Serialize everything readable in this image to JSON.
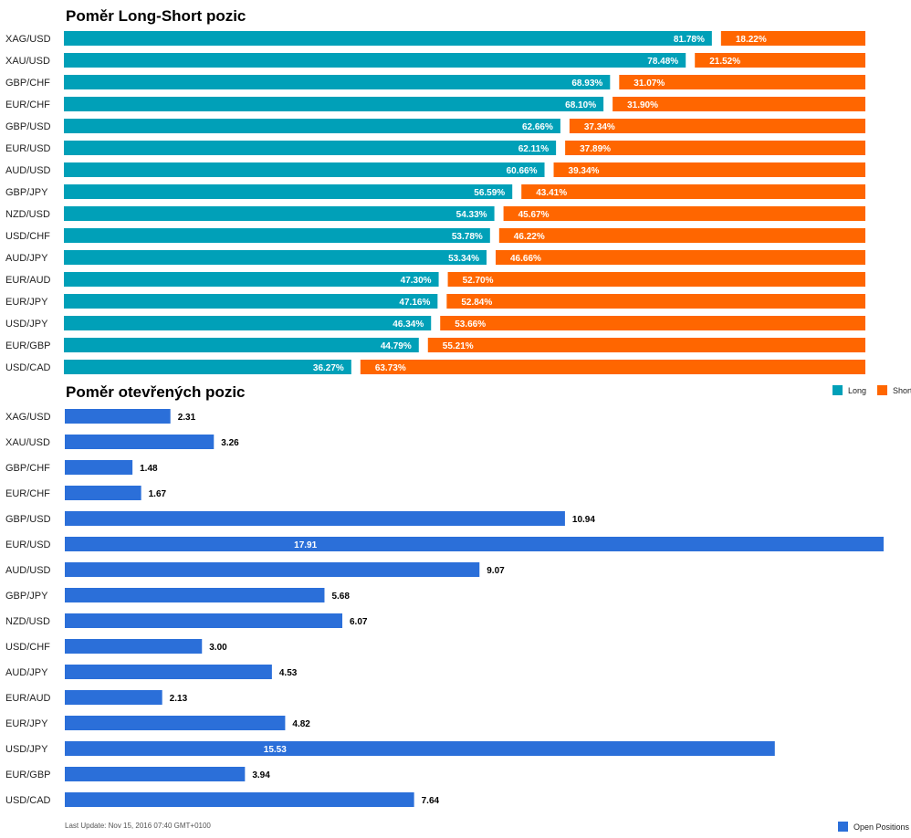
{
  "colors": {
    "long": "#00a0b8",
    "short": "#ff6600",
    "open": "#2b6fd9"
  },
  "chart_data": [
    {
      "type": "bar",
      "orientation": "horizontal",
      "stacked": true,
      "title": "Poměr Long-Short pozic",
      "categories": [
        "XAG/USD",
        "XAU/USD",
        "GBP/CHF",
        "EUR/CHF",
        "GBP/USD",
        "EUR/USD",
        "AUD/USD",
        "GBP/JPY",
        "NZD/USD",
        "USD/CHF",
        "AUD/JPY",
        "EUR/AUD",
        "EUR/JPY",
        "USD/JPY",
        "EUR/GBP",
        "USD/CAD"
      ],
      "series": [
        {
          "name": "Long",
          "values": [
            81.78,
            78.48,
            68.93,
            68.1,
            62.66,
            62.11,
            60.66,
            56.59,
            54.33,
            53.78,
            53.34,
            47.3,
            47.16,
            46.34,
            44.79,
            36.27
          ],
          "labels": [
            "81.78%",
            "78.48%",
            "68.93%",
            "68.10%",
            "62.66%",
            "62.11%",
            "60.66%",
            "56.59%",
            "54.33%",
            "53.78%",
            "53.34%",
            "47.30%",
            "47.16%",
            "46.34%",
            "44.79%",
            "36.27%"
          ]
        },
        {
          "name": "Short",
          "values": [
            18.22,
            21.52,
            31.07,
            31.9,
            37.34,
            37.89,
            39.34,
            43.41,
            45.67,
            46.22,
            46.66,
            52.7,
            52.84,
            53.66,
            55.21,
            63.73
          ],
          "labels": [
            "18.22%",
            "21.52%",
            "31.07%",
            "31.90%",
            "37.34%",
            "37.89%",
            "39.34%",
            "43.41%",
            "45.67%",
            "46.22%",
            "46.66%",
            "52.70%",
            "52.84%",
            "53.66%",
            "55.21%",
            "63.73%"
          ]
        }
      ],
      "legend": "right",
      "grid": false
    },
    {
      "type": "bar",
      "orientation": "horizontal",
      "title": "Poměr otevřených pozic",
      "categories": [
        "XAG/USD",
        "XAU/USD",
        "GBP/CHF",
        "EUR/CHF",
        "GBP/USD",
        "EUR/USD",
        "AUD/USD",
        "GBP/JPY",
        "NZD/USD",
        "USD/CHF",
        "AUD/JPY",
        "EUR/AUD",
        "EUR/JPY",
        "USD/JPY",
        "EUR/GBP",
        "USD/CAD"
      ],
      "series": [
        {
          "name": "Open Positions",
          "values": [
            2.31,
            3.26,
            1.48,
            1.67,
            10.94,
            17.91,
            9.07,
            5.68,
            6.07,
            3.0,
            4.53,
            2.13,
            4.82,
            15.53,
            3.94,
            7.64
          ],
          "labels": [
            "2.31",
            "3.26",
            "1.48",
            "1.67",
            "10.94",
            "17.91",
            "9.07",
            "5.68",
            "6.07",
            "3.00",
            "4.53",
            "2.13",
            "4.82",
            "15.53",
            "3.94",
            "7.64"
          ]
        }
      ],
      "xlim": [
        0,
        17.91
      ],
      "legend": "bottom-right",
      "grid": false
    }
  ],
  "footer": {
    "last_update": "Last Update: Nov 15, 2016 07:40 GMT+0100"
  }
}
